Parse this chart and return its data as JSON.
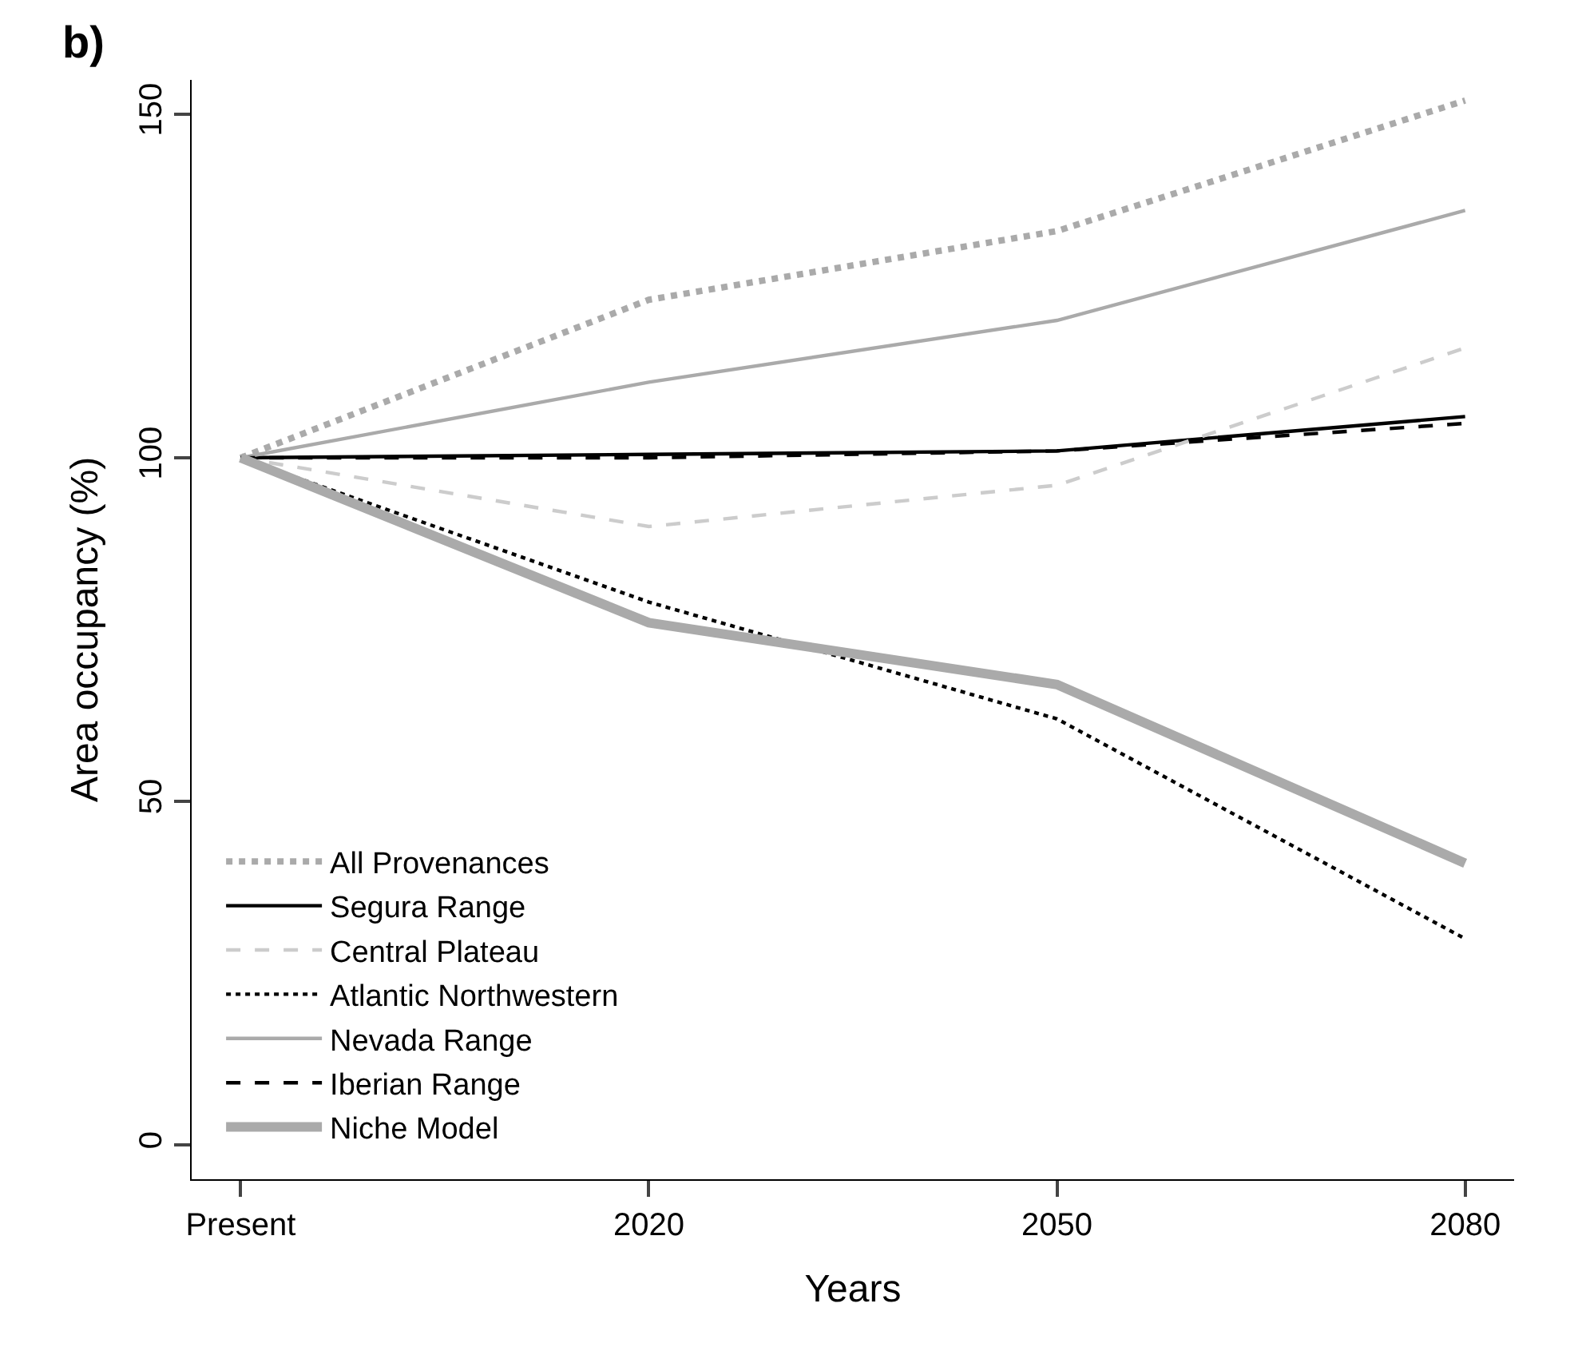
{
  "chart_data": {
    "type": "line",
    "xlabel": "Years",
    "ylabel": "Area occupancy (%)",
    "annotations": [
      "b)"
    ],
    "categories": [
      "Present",
      "2020",
      "2050",
      "2080"
    ],
    "ylim": [
      -5,
      155
    ],
    "yticks": [
      0,
      50,
      100,
      150
    ],
    "legend": "bottom left",
    "marker": "none",
    "series": [
      {
        "name": "All Provenances",
        "color": "#aaaaaa",
        "line_style": "dotted",
        "values": [
          100,
          123,
          133,
          152
        ]
      },
      {
        "name": "Segura Range",
        "color": "#000000",
        "line_style": "solid",
        "values": [
          100,
          100.5,
          101,
          106
        ]
      },
      {
        "name": "Central Plateau",
        "color": "#cccccc",
        "line_style": "dashed",
        "values": [
          100,
          90,
          96,
          116
        ]
      },
      {
        "name": "Atlantic Northwestern",
        "color": "#000000",
        "line_style": "dotted",
        "values": [
          100,
          79,
          62,
          30
        ]
      },
      {
        "name": "Nevada Range",
        "color": "#aaaaaa",
        "line_style": "solid",
        "values": [
          100,
          111,
          120,
          136
        ]
      },
      {
        "name": "Iberian Range",
        "color": "#000000",
        "line_style": "dashed",
        "values": [
          100,
          100,
          101,
          105
        ]
      },
      {
        "name": "Niche Model",
        "color": "#aaaaaa",
        "line_style": "solid",
        "values": [
          100,
          76,
          67,
          41
        ]
      }
    ]
  }
}
